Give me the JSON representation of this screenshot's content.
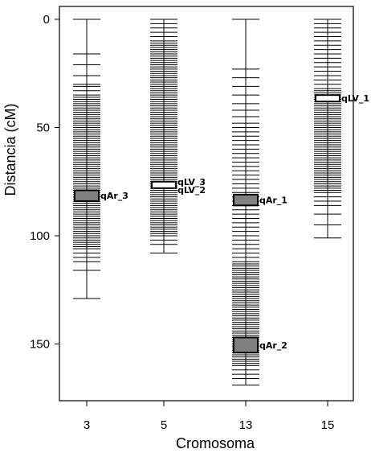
{
  "chart_data": {
    "type": "linkage_map",
    "xlabel": "Cromosoma",
    "ylabel": "Distancia (cM)",
    "ylim": [
      0,
      175
    ],
    "y_inverted": true,
    "y_ticks": [
      0,
      50,
      100,
      150
    ],
    "grid": false,
    "categories": [
      "3",
      "5",
      "13",
      "15"
    ],
    "chromosomes": [
      {
        "name": "3",
        "length": 129,
        "markers": [
          0,
          16,
          21,
          26,
          30,
          31,
          33,
          35,
          36,
          37,
          38,
          39,
          40,
          41,
          42,
          43,
          44,
          45,
          46,
          47,
          48,
          49,
          50,
          51,
          52,
          53,
          54,
          55,
          56,
          57,
          58,
          59,
          60,
          61,
          62,
          63,
          64,
          65,
          66,
          67,
          68,
          69,
          70,
          71,
          72,
          73,
          74,
          75,
          76,
          77,
          78,
          79,
          80,
          81,
          82,
          83,
          84,
          85,
          86,
          87,
          88,
          89,
          90,
          91,
          92,
          93,
          94,
          95,
          96,
          97,
          98,
          99,
          100,
          101,
          102,
          103,
          104,
          105,
          106,
          108,
          110,
          112,
          116,
          129
        ]
      },
      {
        "name": "5",
        "length": 108,
        "markers": [
          0,
          2,
          4,
          6,
          8,
          10,
          11,
          12,
          13,
          14,
          15,
          16,
          17,
          18,
          19,
          20,
          21,
          22,
          23,
          24,
          25,
          26,
          27,
          28,
          29,
          30,
          31,
          32,
          33,
          34,
          35,
          36,
          37,
          38,
          39,
          40,
          41,
          42,
          43,
          44,
          45,
          46,
          47,
          48,
          49,
          50,
          51,
          52,
          53,
          54,
          55,
          56,
          57,
          58,
          59,
          60,
          61,
          62,
          63,
          64,
          65,
          66,
          67,
          68,
          69,
          70,
          71,
          72,
          73,
          74,
          75,
          76,
          77,
          78,
          79,
          80,
          81,
          82,
          83,
          84,
          85,
          86,
          87,
          88,
          89,
          90,
          91,
          92,
          93,
          94,
          95,
          96,
          97,
          98,
          99,
          100,
          102,
          104,
          108
        ]
      },
      {
        "name": "13",
        "length": 169,
        "markers": [
          0,
          23,
          27,
          31,
          35,
          39,
          42,
          45,
          48,
          50,
          52,
          54,
          56,
          58,
          60,
          62,
          64,
          66,
          68,
          70,
          72,
          74,
          76,
          78,
          80,
          82,
          84,
          86,
          88,
          90,
          92,
          94,
          96,
          98,
          100,
          102,
          104,
          106,
          108,
          110,
          112,
          113,
          114,
          115,
          116,
          117,
          118,
          119,
          120,
          121,
          122,
          123,
          124,
          125,
          126,
          127,
          128,
          129,
          130,
          131,
          132,
          133,
          134,
          135,
          136,
          137,
          138,
          139,
          140,
          141,
          142,
          143,
          144,
          145,
          146,
          147,
          148,
          149,
          150,
          151,
          152,
          153,
          154,
          155,
          156,
          157,
          158,
          159,
          160,
          162,
          164,
          166,
          169
        ]
      },
      {
        "name": "15",
        "length": 101,
        "markers": [
          0,
          2,
          4,
          6,
          8,
          10,
          12,
          14,
          16,
          18,
          20,
          22,
          24,
          26,
          28,
          30,
          32,
          33,
          34,
          35,
          36,
          37,
          38,
          39,
          40,
          41,
          42,
          43,
          44,
          45,
          46,
          47,
          48,
          49,
          50,
          51,
          52,
          53,
          54,
          55,
          56,
          57,
          58,
          59,
          60,
          61,
          62,
          63,
          64,
          65,
          66,
          67,
          68,
          69,
          70,
          71,
          72,
          73,
          74,
          75,
          76,
          77,
          78,
          79,
          80,
          82,
          84,
          86,
          90,
          95,
          101
        ]
      }
    ],
    "qtls": [
      {
        "label": "qAr_3",
        "chromosome": "3",
        "start": 79,
        "end": 84,
        "fill": "gray",
        "label_offset": 0
      },
      {
        "label": "qLV_3",
        "chromosome": "5",
        "start": 75,
        "end": 78,
        "fill": "white",
        "label_offset": -4
      },
      {
        "label": "qLV_2",
        "chromosome": "5",
        "start": 75,
        "end": 78,
        "fill": "white",
        "label_offset": 6
      },
      {
        "label": "qAr_1",
        "chromosome": "13",
        "start": 81,
        "end": 86,
        "fill": "gray",
        "label_offset": 0
      },
      {
        "label": "qAr_2",
        "chromosome": "13",
        "start": 147,
        "end": 154,
        "fill": "gray",
        "label_offset": 0
      },
      {
        "label": "qLV_1",
        "chromosome": "15",
        "start": 35,
        "end": 38,
        "fill": "white",
        "label_offset": 0
      }
    ],
    "colors": {
      "marker": "#000000",
      "qtl_gray": "#808080",
      "qtl_white": "#ffffff",
      "frame": "#000000"
    }
  }
}
